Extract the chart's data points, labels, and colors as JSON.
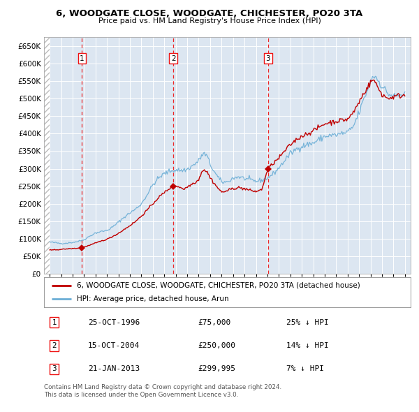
{
  "title": "6, WOODGATE CLOSE, WOODGATE, CHICHESTER, PO20 3TA",
  "subtitle": "Price paid vs. HM Land Registry's House Price Index (HPI)",
  "legend_line1": "6, WOODGATE CLOSE, WOODGATE, CHICHESTER, PO20 3TA (detached house)",
  "legend_line2": "HPI: Average price, detached house, Arun",
  "footnote1": "Contains HM Land Registry data © Crown copyright and database right 2024.",
  "footnote2": "This data is licensed under the Open Government Licence v3.0.",
  "transactions": [
    {
      "num": 1,
      "date": "25-OCT-1996",
      "price": 75000,
      "pct": "25%",
      "dir": "↓",
      "year_x": 1996.82
    },
    {
      "num": 2,
      "date": "15-OCT-2004",
      "price": 250000,
      "pct": "14%",
      "dir": "↓",
      "year_x": 2004.79
    },
    {
      "num": 3,
      "date": "21-JAN-2013",
      "price": 299995,
      "pct": "7%",
      "dir": "↓",
      "year_x": 2013.05
    }
  ],
  "hpi_color": "#6baed6",
  "price_color": "#c00000",
  "dashed_color": "#ee1111",
  "background_plot": "#dce6f1",
  "ylim": [
    0,
    675000
  ],
  "yticks": [
    0,
    50000,
    100000,
    150000,
    200000,
    250000,
    300000,
    350000,
    400000,
    450000,
    500000,
    550000,
    600000,
    650000
  ],
  "xlim": [
    1993.5,
    2025.5
  ]
}
